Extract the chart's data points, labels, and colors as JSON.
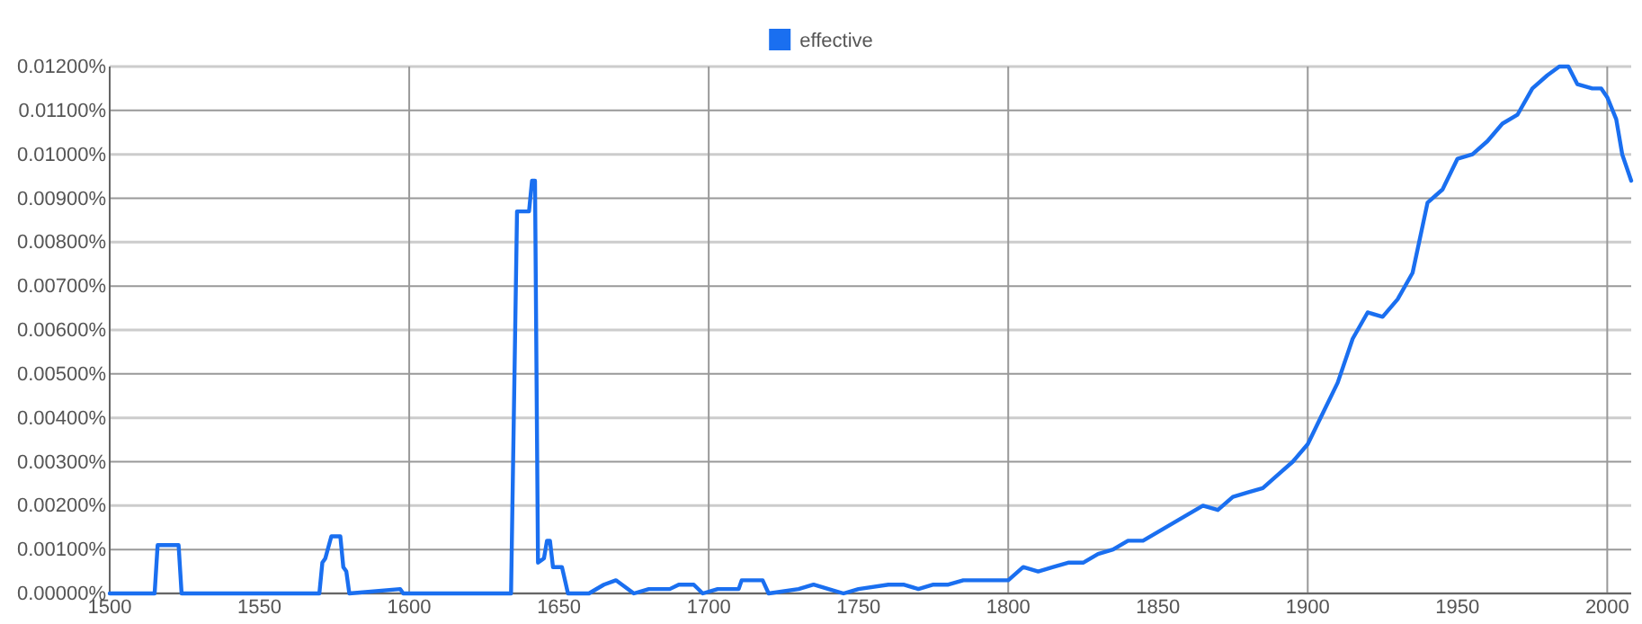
{
  "chart_data": {
    "type": "line",
    "legend": "top",
    "grid": true,
    "marker": "none",
    "line_style": "solid",
    "xlim": [
      1500,
      2008
    ],
    "xticks": [
      1500,
      1550,
      1600,
      1650,
      1700,
      1750,
      1800,
      1850,
      1900,
      1950,
      2000
    ],
    "ylim": [
      0,
      0.012
    ],
    "yticks": [
      {
        "value": 0,
        "label": "0.00000%"
      },
      {
        "value": 0.001,
        "label": "0.00100%"
      },
      {
        "value": 0.002,
        "label": "0.00200%"
      },
      {
        "value": 0.003,
        "label": "0.00300%"
      },
      {
        "value": 0.004,
        "label": "0.00400%"
      },
      {
        "value": 0.005,
        "label": "0.00500%"
      },
      {
        "value": 0.006,
        "label": "0.00600%"
      },
      {
        "value": 0.007,
        "label": "0.00700%"
      },
      {
        "value": 0.008,
        "label": "0.00800%"
      },
      {
        "value": 0.009,
        "label": "0.00900%"
      },
      {
        "value": 0.01,
        "label": "0.01000%"
      },
      {
        "value": 0.011,
        "label": "0.01100%"
      },
      {
        "value": 0.012,
        "label": "0.01200%"
      }
    ],
    "series": [
      {
        "name": "effective",
        "color": "#1a6ff0",
        "x": [
          1500,
          1515,
          1516,
          1523,
          1524,
          1570,
          1571,
          1572,
          1574,
          1577,
          1578,
          1579,
          1580,
          1597,
          1598,
          1634,
          1636,
          1640,
          1641,
          1642,
          1643,
          1645,
          1646,
          1647,
          1648,
          1651,
          1652,
          1653,
          1660,
          1665,
          1669,
          1675,
          1680,
          1687,
          1690,
          1695,
          1698,
          1703,
          1710,
          1711,
          1718,
          1720,
          1730,
          1735,
          1740,
          1745,
          1750,
          1760,
          1765,
          1770,
          1775,
          1780,
          1785,
          1795,
          1800,
          1805,
          1810,
          1815,
          1820,
          1825,
          1830,
          1835,
          1840,
          1845,
          1850,
          1855,
          1860,
          1865,
          1870,
          1875,
          1880,
          1885,
          1890,
          1895,
          1900,
          1905,
          1910,
          1915,
          1920,
          1925,
          1930,
          1935,
          1940,
          1945,
          1950,
          1955,
          1960,
          1965,
          1970,
          1975,
          1980,
          1984,
          1987,
          1990,
          1995,
          1998,
          2000,
          2003,
          2005,
          2008
        ],
        "values": [
          0,
          0,
          0.0011,
          0.0011,
          0,
          0,
          0.0007,
          0.0008,
          0.0013,
          0.0013,
          0.0006,
          0.0005,
          0,
          0.0001,
          0,
          0,
          0.0087,
          0.0087,
          0.0094,
          0.0094,
          0.0007,
          0.0008,
          0.0012,
          0.0012,
          0.0006,
          0.0006,
          0.0003,
          0,
          0,
          0.0002,
          0.0003,
          0,
          0.0001,
          0.0001,
          0.0002,
          0.0002,
          0,
          0.0001,
          0.0001,
          0.0003,
          0.0003,
          0,
          0.0001,
          0.0002,
          0.0001,
          0,
          0.0001,
          0.0002,
          0.0002,
          0.0001,
          0.0002,
          0.0002,
          0.0003,
          0.0003,
          0.0003,
          0.0006,
          0.0005,
          0.0006,
          0.0007,
          0.0007,
          0.0009,
          0.001,
          0.0012,
          0.0012,
          0.0014,
          0.0016,
          0.0018,
          0.002,
          0.0019,
          0.0022,
          0.0023,
          0.0024,
          0.0027,
          0.003,
          0.0034,
          0.0041,
          0.0048,
          0.0058,
          0.0064,
          0.0063,
          0.0067,
          0.0073,
          0.0089,
          0.0092,
          0.0099,
          0.01,
          0.0103,
          0.0107,
          0.0109,
          0.0115,
          0.0118,
          0.012,
          0.012,
          0.0116,
          0.0115,
          0.0115,
          0.0113,
          0.0108,
          0.01,
          0.0094
        ]
      }
    ]
  }
}
